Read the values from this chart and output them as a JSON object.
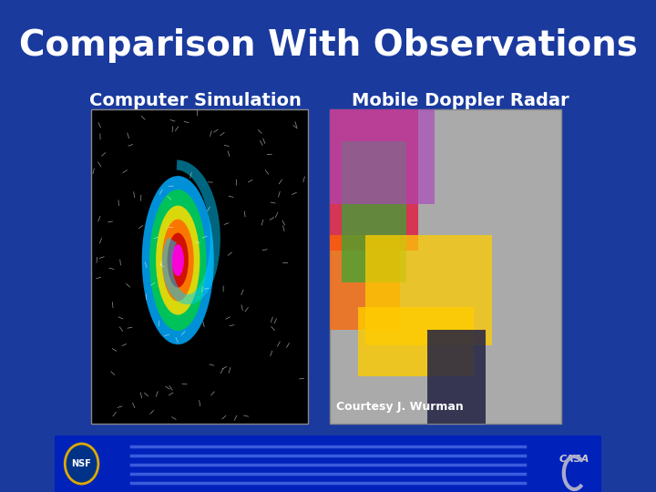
{
  "title": "Comparison With Observations",
  "title_color": "#ffffff",
  "title_fontsize": 28,
  "background_color": "#1a3a9e",
  "left_label": "Computer Simulation",
  "right_label": "Mobile Doppler Radar",
  "courtesy_text": "Courtesy J. Wurman",
  "courtesy_fontsize": 9,
  "label_fontsize": 14,
  "label_color": "#ffffff",
  "stripe_color": "#3355cc",
  "stripe_bg": "#0022bb",
  "left_image_placeholder_color": "#000000",
  "right_image_placeholder_color": "#888888",
  "fig_width": 7.2,
  "fig_height": 5.4
}
